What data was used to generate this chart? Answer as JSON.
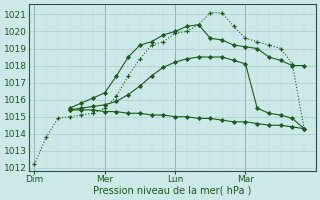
{
  "xlabel": "Pression niveau de la mer( hPa )",
  "ylim": [
    1011.8,
    1021.6
  ],
  "yticks": [
    1012,
    1013,
    1014,
    1015,
    1016,
    1017,
    1018,
    1019,
    1020,
    1021
  ],
  "bg_color": "#cce8e8",
  "grid_color_major": "#aacccc",
  "grid_color_minor": "#bcd8d8",
  "line_color": "#1a5c1a",
  "day_labels": [
    "Dim",
    "Mer",
    "Lun",
    "Mar"
  ],
  "day_positions": [
    0,
    6,
    12,
    18
  ],
  "vline_positions": [
    0,
    6,
    12,
    18
  ],
  "xlim": [
    -0.5,
    24
  ],
  "s1x": [
    0,
    1,
    2,
    3,
    4,
    5,
    6,
    7,
    8,
    9,
    10,
    11,
    12,
    13,
    14,
    15,
    16,
    17,
    18,
    19,
    20,
    21,
    22,
    23
  ],
  "s1y": [
    1012.2,
    1013.8,
    1014.9,
    1015.0,
    1015.1,
    1015.2,
    1015.5,
    1016.2,
    1017.4,
    1018.4,
    1019.2,
    1019.4,
    1019.9,
    1020.0,
    1020.4,
    1021.1,
    1021.1,
    1020.3,
    1019.6,
    1019.4,
    1019.2,
    1019.0,
    1018.1,
    1014.3
  ],
  "s2x": [
    3,
    4,
    5,
    6,
    7,
    8,
    9,
    10,
    11,
    12,
    13,
    14,
    15,
    16,
    17,
    18,
    19,
    20,
    21,
    22,
    23
  ],
  "s2y": [
    1015.5,
    1015.8,
    1016.1,
    1016.4,
    1017.4,
    1018.5,
    1019.2,
    1019.4,
    1019.8,
    1020.0,
    1020.3,
    1020.4,
    1019.6,
    1019.5,
    1019.2,
    1019.1,
    1019.0,
    1018.5,
    1018.3,
    1018.0,
    1018.0
  ],
  "s3x": [
    3,
    4,
    5,
    6,
    7,
    8,
    9,
    10,
    11,
    12,
    13,
    14,
    15,
    16,
    17,
    18,
    19,
    20,
    21,
    22,
    23
  ],
  "s3y": [
    1015.4,
    1015.5,
    1015.6,
    1015.7,
    1015.9,
    1016.3,
    1016.8,
    1017.4,
    1017.9,
    1018.2,
    1018.4,
    1018.5,
    1018.5,
    1018.5,
    1018.3,
    1018.1,
    1015.5,
    1015.2,
    1015.1,
    1014.9,
    1014.3
  ],
  "s4x": [
    3,
    4,
    5,
    6,
    7,
    8,
    9,
    10,
    11,
    12,
    13,
    14,
    15,
    16,
    17,
    18,
    19,
    20,
    21,
    22,
    23
  ],
  "s4y": [
    1015.4,
    1015.4,
    1015.4,
    1015.3,
    1015.3,
    1015.2,
    1015.2,
    1015.1,
    1015.1,
    1015.0,
    1015.0,
    1014.9,
    1014.9,
    1014.8,
    1014.7,
    1014.7,
    1014.6,
    1014.5,
    1014.5,
    1014.4,
    1014.3
  ]
}
